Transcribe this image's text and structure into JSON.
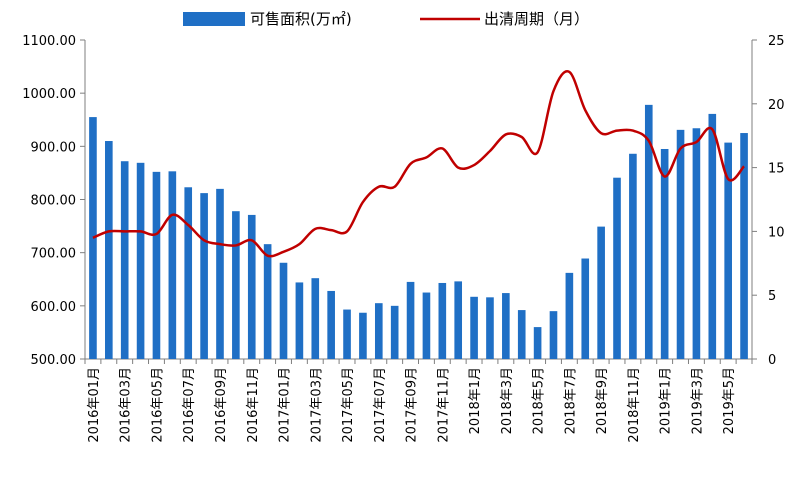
{
  "legend": {
    "bar_label": "可售面积(万㎡)",
    "line_label": "出清周期（月）"
  },
  "colors": {
    "bar": "#1f6fc5",
    "line": "#c00000",
    "axis": "#7f7f7f"
  },
  "chart_data": {
    "type": "bar",
    "categories": [
      "2016年01月",
      "2016年02月",
      "2016年03月",
      "2016年04月",
      "2016年05月",
      "2016年06月",
      "2016年07月",
      "2016年08月",
      "2016年09月",
      "2016年10月",
      "2016年11月",
      "2016年12月",
      "2017年01月",
      "2017年02月",
      "2017年03月",
      "2017年04月",
      "2017年05月",
      "2017年06月",
      "2017年07月",
      "2017年08月",
      "2017年09月",
      "2017年10月",
      "2017年11月",
      "2017年12月",
      "2018年1月",
      "2018年2月",
      "2018年3月",
      "2018年4月",
      "2018年5月",
      "2018年6月",
      "2018年7月",
      "2018年8月",
      "2018年9月",
      "2018年10月",
      "2018年11月",
      "2018年12月",
      "2019年1月",
      "2019年2月",
      "2019年3月",
      "2019年4月",
      "2019年5月",
      "2019年6月"
    ],
    "x_tick_labels": [
      "2016年01月",
      "2016年03月",
      "2016年05月",
      "2016年07月",
      "2016年09月",
      "2016年11月",
      "2017年01月",
      "2017年03月",
      "2017年05月",
      "2017年07月",
      "2017年09月",
      "2017年11月",
      "2018年1月",
      "2018年3月",
      "2018年5月",
      "2018年7月",
      "2018年9月",
      "2018年11月",
      "2019年1月",
      "2019年3月",
      "2019年5月"
    ],
    "series": [
      {
        "name": "可售面积(万㎡)",
        "type": "bar",
        "axis": "left",
        "values": [
          955,
          910,
          872,
          869,
          852,
          853,
          823,
          812,
          820,
          778,
          771,
          716,
          681,
          644,
          652,
          628,
          593,
          587,
          605,
          600,
          645,
          625,
          643,
          646,
          617,
          616,
          624,
          592,
          560,
          590,
          662,
          689,
          749,
          841,
          886,
          978,
          895,
          931,
          934,
          961,
          907,
          925
        ]
      },
      {
        "name": "出清周期（月）",
        "type": "line",
        "axis": "right",
        "values": [
          9.5,
          10.0,
          10.0,
          10.0,
          9.8,
          11.3,
          10.5,
          9.3,
          9.0,
          8.9,
          9.3,
          8.1,
          8.4,
          9.0,
          10.2,
          10.1,
          10.0,
          12.3,
          13.5,
          13.5,
          15.3,
          15.8,
          16.5,
          15.0,
          15.2,
          16.3,
          17.6,
          17.4,
          16.2,
          21.0,
          22.5,
          19.5,
          17.7,
          17.9,
          17.9,
          17.1,
          14.3,
          16.5,
          17.0,
          18.0,
          14.1,
          15.1
        ]
      }
    ],
    "y_left": {
      "ylim": [
        500,
        1100
      ],
      "ticks": [
        "500.00",
        "600.00",
        "700.00",
        "800.00",
        "900.00",
        "1000.00",
        "1100.00"
      ]
    },
    "y_right": {
      "ylim": [
        0,
        25
      ],
      "ticks": [
        "0",
        "5",
        "10",
        "15",
        "20",
        "25"
      ]
    },
    "grid": false,
    "legend_position": "top-center"
  }
}
